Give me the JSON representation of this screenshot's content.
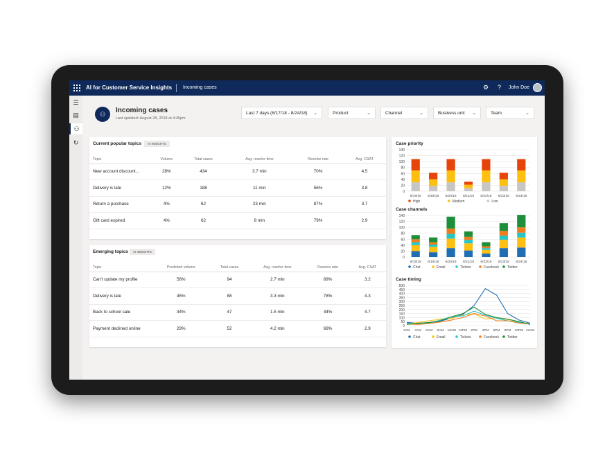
{
  "app": {
    "title": "AI for Customer Service Insights",
    "crumb": "Incoming cases",
    "user": "John Doe"
  },
  "header": {
    "title": "Incoming cases",
    "updated": "Last updated:  August 28, 2018 at 4:45pm"
  },
  "filters": [
    {
      "label": "Last 7 days (8/17/18 - 8/24/18)"
    },
    {
      "label": "Product"
    },
    {
      "label": "Channel"
    },
    {
      "label": "Business unit"
    },
    {
      "label": "Team"
    }
  ],
  "popular": {
    "title": "Current popular topics",
    "badge": "AI INSIGHTS",
    "columns": [
      "Topic",
      "Volume",
      "Total cases",
      "Avg. resolve time",
      "Resolve rate",
      "Avg. CSAT"
    ],
    "rows": [
      [
        "New account discount...",
        "28%",
        "434",
        "3.7 min",
        "70%",
        "4.5"
      ],
      [
        "Delivery is late",
        "12%",
        "188",
        "11 min",
        "56%",
        "3.8"
      ],
      [
        "Return a purchase",
        "4%",
        "62",
        "23 min",
        "87%",
        "3.7"
      ],
      [
        "Gift card expired",
        "4%",
        "62",
        "8 min",
        "79%",
        "2.9"
      ]
    ]
  },
  "emerging": {
    "title": "Emerging topics",
    "badge": "AI INSIGHTS",
    "columns": [
      "Topic",
      "Predicted volume",
      "Total cases",
      "Avg. resolve time",
      "Resolve rate",
      "Avg. CSAT"
    ],
    "rows": [
      [
        "Can't update my profile",
        "58%",
        "94",
        "2.7 min",
        "89%",
        "3.2"
      ],
      [
        "Delivery is late",
        "45%",
        "88",
        "3.3 min",
        "78%",
        "4.3"
      ],
      [
        "Back to school sale",
        "34%",
        "47",
        "1.5 min",
        "44%",
        "4.7"
      ],
      [
        "Payment declined online",
        "29%",
        "52",
        "4.2 min",
        "69%",
        "2.9"
      ]
    ]
  },
  "chart_data": [
    {
      "type": "bar",
      "title": "Case priority",
      "categories": [
        "8/18/18",
        "8/19/18",
        "8/20/18",
        "8/21/18",
        "8/22/18",
        "8/23/18",
        "8/24/18"
      ],
      "ylim": [
        0,
        140
      ],
      "yticks": [
        0,
        20,
        40,
        60,
        80,
        100,
        120,
        140
      ],
      "series": [
        {
          "name": "Low",
          "color": "#c8c6c4",
          "values": [
            30,
            18,
            30,
            10,
            30,
            18,
            30
          ]
        },
        {
          "name": "Medium",
          "color": "#fdc010",
          "values": [
            40,
            22,
            40,
            12,
            40,
            22,
            40
          ]
        },
        {
          "name": "High",
          "color": "#e6440a",
          "values": [
            38,
            22,
            38,
            10,
            38,
            22,
            38
          ]
        }
      ],
      "legend": [
        "High",
        "Medium",
        "Low"
      ]
    },
    {
      "type": "bar",
      "title": "Case channels",
      "categories": [
        "8/18/18",
        "8/19/18",
        "8/20/18",
        "8/21/18",
        "8/22/18",
        "8/23/18",
        "8/24/18"
      ],
      "ylim": [
        0,
        140
      ],
      "yticks": [
        0,
        20,
        40,
        60,
        80,
        100,
        120,
        140
      ],
      "series": [
        {
          "name": "Chat",
          "color": "#1f6eb4",
          "values": [
            20,
            16,
            30,
            22,
            12,
            30,
            32
          ]
        },
        {
          "name": "Email",
          "color": "#fdc010",
          "values": [
            20,
            18,
            32,
            24,
            12,
            28,
            34
          ]
        },
        {
          "name": "Tickets",
          "color": "#26c6c9",
          "values": [
            10,
            8,
            16,
            12,
            6,
            14,
            16
          ]
        },
        {
          "name": "Facebook",
          "color": "#f07d1d",
          "values": [
            10,
            8,
            18,
            10,
            6,
            16,
            18
          ]
        },
        {
          "name": "Twitter",
          "color": "#1d8f3a",
          "values": [
            14,
            16,
            40,
            18,
            14,
            26,
            42
          ]
        }
      ]
    },
    {
      "type": "line",
      "title": "Case timing",
      "x": [
        "2AM",
        "4AM",
        "6AM",
        "8AM",
        "10AM",
        "12PM",
        "2PM",
        "4PM",
        "6PM",
        "8PM",
        "10PM",
        "12AM"
      ],
      "ylim": [
        0,
        500
      ],
      "yticks": [
        0,
        50,
        100,
        150,
        200,
        250,
        300,
        350,
        400,
        450,
        500
      ],
      "xtick_labels": [
        "2AM",
        "4AM",
        "6AM",
        "8AM",
        "10AM",
        "12PM",
        "2PM",
        "4PM",
        "6PM",
        "8PM",
        "10PM",
        "12AM"
      ],
      "series": [
        {
          "name": "Chat",
          "color": "#1f6eb4",
          "values": [
            40,
            30,
            35,
            55,
            95,
            140,
            250,
            460,
            380,
            150,
            70,
            30
          ]
        },
        {
          "name": "Email",
          "color": "#fdc010",
          "values": [
            20,
            40,
            60,
            80,
            90,
            130,
            150,
            80,
            100,
            75,
            50,
            20
          ]
        },
        {
          "name": "Tickets",
          "color": "#26c6c9",
          "values": [
            30,
            20,
            30,
            70,
            110,
            120,
            180,
            130,
            90,
            60,
            40,
            20
          ]
        },
        {
          "name": "Facebook",
          "color": "#f07d1d",
          "values": [
            20,
            15,
            25,
            45,
            70,
            100,
            150,
            120,
            60,
            60,
            30,
            20
          ]
        },
        {
          "name": "Twitter",
          "color": "#1d8f3a",
          "values": [
            15,
            30,
            40,
            60,
            110,
            150,
            230,
            140,
            100,
            80,
            50,
            15
          ]
        }
      ]
    }
  ]
}
